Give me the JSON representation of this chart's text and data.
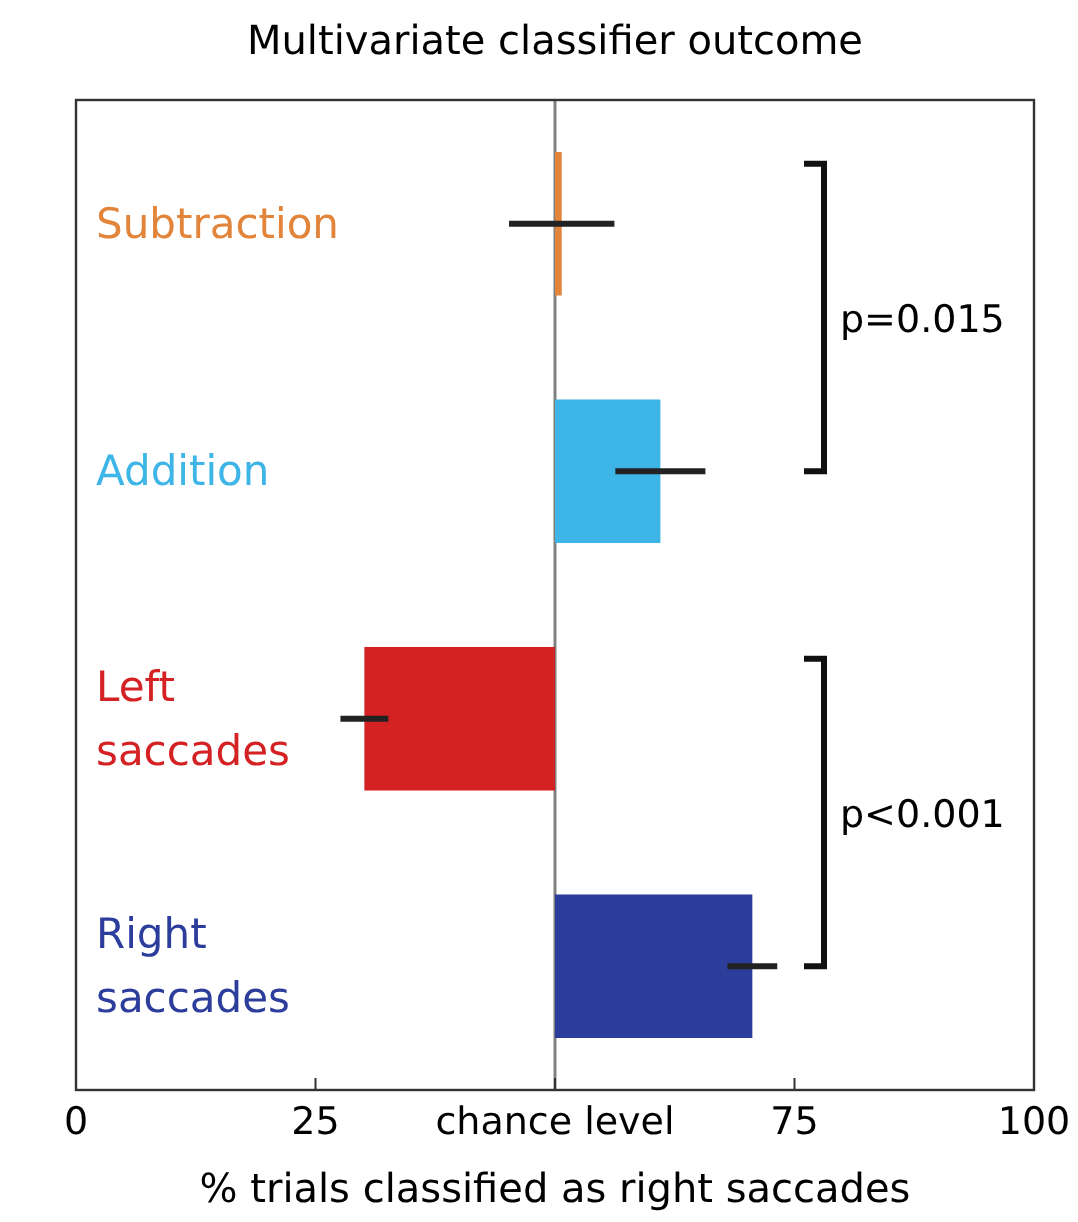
{
  "chart_data": {
    "type": "bar",
    "orientation": "horizontal",
    "title": "Multivariate classifier outcome",
    "xlabel": "% trials classified as right saccades",
    "categories": [
      "Subtraction",
      "Addition",
      "Left saccades",
      "Right saccades"
    ],
    "base": [
      50,
      50,
      50,
      50
    ],
    "values": [
      0.7,
      11,
      -19.9,
      20.6
    ],
    "errors": [
      5.5,
      4.7,
      2.5,
      2.6
    ],
    "colors": [
      "#e2843a",
      "#3db5e6",
      "#d42224",
      "#2d3d9c"
    ],
    "xlim": [
      0,
      100
    ],
    "xticks": [
      0,
      25,
      {
        "value": 50,
        "label": "chance level"
      },
      75,
      100
    ],
    "ref_lines": [
      {
        "axis": "x",
        "value": 50,
        "color": "#808080"
      }
    ],
    "annotations": [
      "p=0.015",
      "p<0.001"
    ],
    "grid": false
  }
}
